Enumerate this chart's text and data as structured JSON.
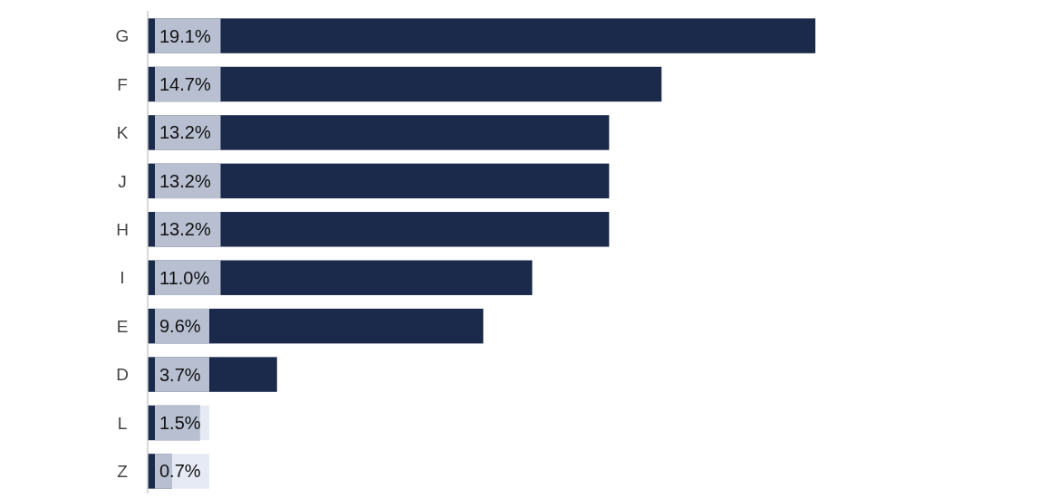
{
  "chart_data": {
    "type": "bar",
    "orientation": "horizontal",
    "categories": [
      "G",
      "F",
      "K",
      "J",
      "H",
      "I",
      "E",
      "D",
      "L",
      "Z"
    ],
    "values": [
      19.1,
      14.7,
      13.2,
      13.2,
      13.2,
      11.0,
      9.6,
      3.7,
      1.5,
      0.7
    ],
    "value_labels": [
      "19.1%",
      "14.7%",
      "13.2%",
      "13.2%",
      "13.2%",
      "11.0%",
      "9.6%",
      "3.7%",
      "1.5%",
      "0.7%"
    ],
    "color": "#1b2a4b"
  }
}
